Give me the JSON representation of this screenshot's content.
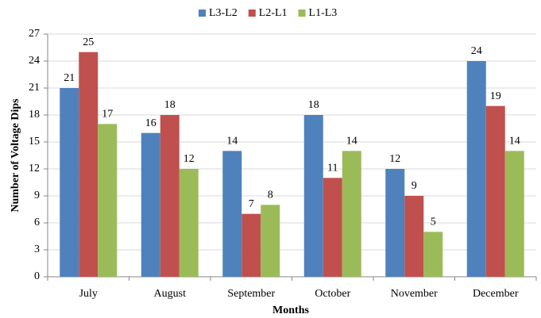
{
  "chart_data": {
    "type": "bar",
    "x_label": "Months",
    "y_label": "Number of Voltage Dips",
    "categories": [
      "July",
      "August",
      "September",
      "October",
      "November",
      "December"
    ],
    "series": [
      {
        "name": "L3-L2",
        "color": "#4f81bd",
        "values": [
          21,
          16,
          14,
          18,
          12,
          24
        ]
      },
      {
        "name": "L2-L1",
        "color": "#c0504d",
        "values": [
          25,
          18,
          7,
          11,
          9,
          19
        ]
      },
      {
        "name": "L1-L3",
        "color": "#9bbb59",
        "values": [
          17,
          12,
          8,
          14,
          5,
          14
        ]
      }
    ],
    "ylim": [
      0,
      27
    ],
    "yticks": [
      0,
      3,
      6,
      9,
      12,
      15,
      18,
      21,
      24,
      27
    ],
    "grid": true,
    "legend": "top",
    "data_labels": true
  }
}
